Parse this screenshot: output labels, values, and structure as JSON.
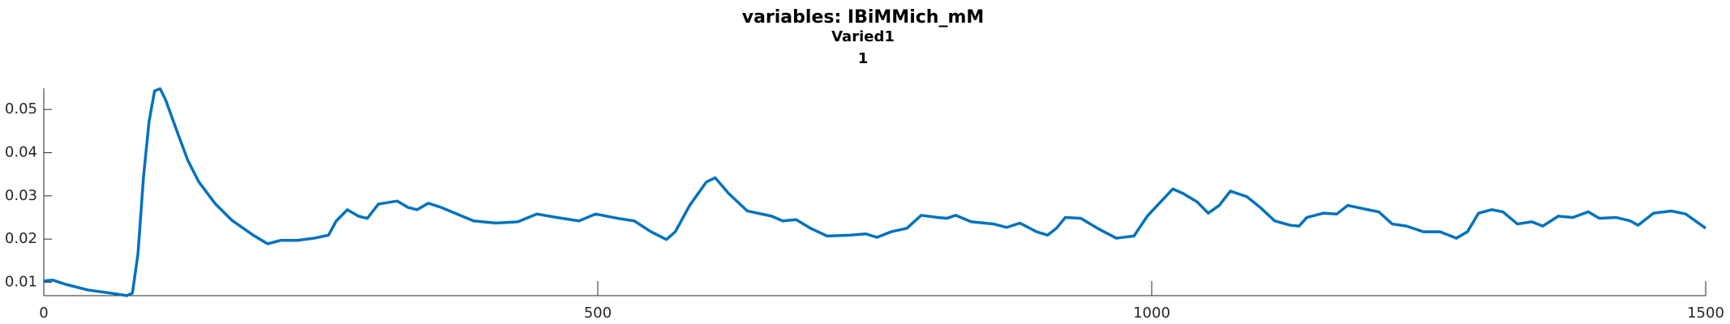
{
  "chart_data": {
    "type": "line",
    "title": "variables: IBiMMich_mM",
    "subtitle": "Varied1",
    "subtitle2": "1",
    "x": [
      0,
      8,
      20,
      40,
      60,
      75,
      80,
      85,
      90,
      95,
      100,
      105,
      110,
      120,
      130,
      140,
      155,
      170,
      189,
      202,
      214,
      229,
      244,
      257,
      264,
      274,
      284,
      292,
      302,
      319,
      329,
      337,
      347,
      359,
      373,
      388,
      408,
      428,
      445,
      463,
      483,
      498,
      518,
      533,
      548,
      562,
      570,
      583,
      598,
      606,
      618,
      635,
      657,
      667,
      679,
      692,
      707,
      727,
      742,
      752,
      765,
      779,
      792,
      807,
      815,
      823,
      837,
      857,
      869,
      881,
      896,
      906,
      914,
      922,
      936,
      951,
      968,
      984,
      996,
      1008,
      1019,
      1028,
      1041,
      1051,
      1061,
      1071,
      1086,
      1098,
      1111,
      1125,
      1133,
      1140,
      1155,
      1167,
      1177,
      1195,
      1205,
      1217,
      1230,
      1245,
      1260,
      1275,
      1285,
      1295,
      1307,
      1317,
      1330,
      1343,
      1353,
      1367,
      1380,
      1394,
      1404,
      1419,
      1432,
      1439,
      1453,
      1469,
      1482,
      1500
    ],
    "series": [
      {
        "color": "#0072bd",
        "values": [
          0.0103,
          0.0105,
          0.0095,
          0.0082,
          0.0075,
          0.0069,
          0.0075,
          0.0166,
          0.0344,
          0.0472,
          0.0543,
          0.0548,
          0.0522,
          0.0451,
          0.0382,
          0.0332,
          0.0281,
          0.0243,
          0.0209,
          0.0189,
          0.0197,
          0.0197,
          0.0202,
          0.0209,
          0.0242,
          0.0268,
          0.0253,
          0.0248,
          0.0281,
          0.0288,
          0.0273,
          0.0268,
          0.0283,
          0.0273,
          0.0258,
          0.0242,
          0.0237,
          0.024,
          0.0258,
          0.025,
          0.0242,
          0.0258,
          0.0248,
          0.0242,
          0.0217,
          0.0199,
          0.0217,
          0.0278,
          0.0332,
          0.0342,
          0.0306,
          0.0265,
          0.0253,
          0.0242,
          0.0245,
          0.0225,
          0.0207,
          0.0209,
          0.0212,
          0.0204,
          0.0217,
          0.0225,
          0.0255,
          0.025,
          0.0248,
          0.0255,
          0.024,
          0.0235,
          0.0227,
          0.0237,
          0.0217,
          0.0209,
          0.0225,
          0.025,
          0.0248,
          0.0225,
          0.0202,
          0.0207,
          0.0253,
          0.0286,
          0.0316,
          0.0306,
          0.0286,
          0.026,
          0.0278,
          0.0311,
          0.0298,
          0.0273,
          0.0242,
          0.0232,
          0.023,
          0.025,
          0.026,
          0.0258,
          0.0278,
          0.0268,
          0.0263,
          0.0235,
          0.023,
          0.0217,
          0.0217,
          0.0202,
          0.0217,
          0.026,
          0.0268,
          0.0263,
          0.0235,
          0.024,
          0.023,
          0.0253,
          0.025,
          0.0263,
          0.0248,
          0.025,
          0.0242,
          0.0232,
          0.026,
          0.0265,
          0.0258,
          0.0225
        ]
      }
    ],
    "xlim": [
      0,
      1500
    ],
    "xticks": [
      0,
      500,
      1000,
      1500
    ],
    "ylim": [
      0.0069,
      0.0549
    ],
    "yticks": [
      0.01,
      0.02,
      0.03,
      0.04,
      0.05
    ]
  }
}
